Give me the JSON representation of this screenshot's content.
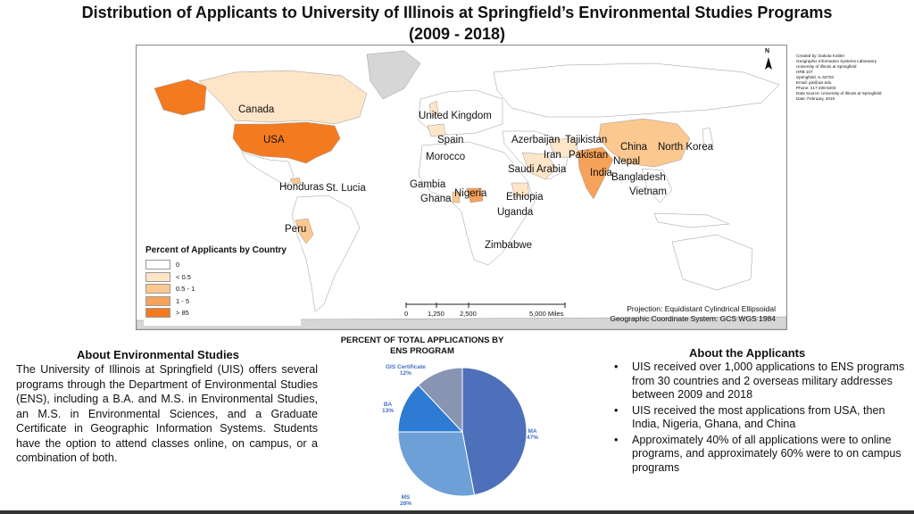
{
  "title": {
    "line1": "Distribution of Applicants to University of Illinois at Springfield’s Environmental Studies Programs",
    "line2": "(2009 - 2018)"
  },
  "colors": {
    "ocean": "#ffffff",
    "land_none": "#d6d6d6",
    "class_0": "#ffffff",
    "class_lt05": "#fde5c8",
    "class_05_1": "#fbc890",
    "class_1_5": "#f7a25a",
    "class_gt85": "#f47a20",
    "pie_ma": "#4e6fba",
    "pie_ms": "#6da0d6",
    "pie_ba": "#2e7bd4",
    "pie_gis": "#8795b3"
  },
  "map": {
    "labels": {
      "canada": "Canada",
      "usa": "USA",
      "uk": "United Kingdom",
      "spain": "Spain",
      "morocco": "Morocco",
      "azerbaijan": "Azerbaijan",
      "tajikistan": "Tajikistan",
      "iran": "Iran",
      "pakistan": "Pakistan",
      "china": "China",
      "north_korea": "North Korea",
      "nepal": "Nepal",
      "india": "India",
      "saudi_arabia": "Saudi Arabia",
      "bangladesh": "Bangladesh",
      "vietnam": "Vietnam",
      "honduras": "Honduras",
      "st_lucia": "St. Lucia",
      "gambia": "Gambia",
      "ghana": "Ghana",
      "nigeria": "Nigeria",
      "ethiopia": "Ethiopia",
      "uganda": "Uganda",
      "peru": "Peru",
      "zimbabwe": "Zimbabwe"
    },
    "legend": {
      "title": "Percent of Applicants by Country",
      "items": [
        "0",
        "< 0.5",
        "0.5 - 1",
        "1 - 5",
        "> 85"
      ]
    },
    "projection": {
      "line1": "Projection: Equidistant Cylindrical Ellipsoidal",
      "line2": "Geographic Coordinate System: GCS WGS 1984"
    },
    "scale": {
      "ticks": [
        "0",
        "1,250",
        "2,500",
        "5,000 Miles"
      ]
    },
    "north_label": "N"
  },
  "credits": [
    "Created by: Dakota Kobler",
    "Geographic Information Systems Laboratory",
    "University of Illinois at Springfield",
    "HRB 107",
    "Springfield, IL 62703",
    "Email: gis@uis.edu",
    "Phone: 217-206-5403",
    "Data Source: University of Illinois at Springfield",
    "Date: February, 2019"
  ],
  "about_ens": {
    "title": "About Environmental Studies",
    "text": "The University of Illinois at Springfield (UIS) offers several programs through the Department of Environmental Studies (ENS), including a B.A. and M.S. in Environmental Studies, an M.S. in Environmental Sciences, and a Graduate Certificate in Geographic Information Systems.  Students have the option to attend classes online, on campus, or a combination of both."
  },
  "chart_data": {
    "type": "pie",
    "title": "PERCENT OF TOTAL APPLICATIONS BY ENS PROGRAM",
    "slices": [
      {
        "label": "MA",
        "value": 47,
        "pct": "47%"
      },
      {
        "label": "MS",
        "value": 28,
        "pct": "28%"
      },
      {
        "label": "BA",
        "value": 13,
        "pct": "13%"
      },
      {
        "label": "GIS Certificate",
        "value": 12,
        "pct": "12%"
      }
    ]
  },
  "about_applicants": {
    "title": "About the Applicants",
    "bullets": [
      "UIS received over 1,000 applications to ENS programs from 30 countries and 2 overseas military addresses between 2009 and 2018",
      "UIS received the most applications from USA, then India, Nigeria, Ghana, and China",
      "Approximately 40% of all applications were to online programs, and approximately 60% were to on campus programs"
    ]
  }
}
